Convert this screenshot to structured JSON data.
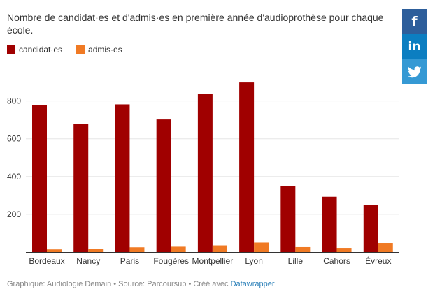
{
  "title": "Nombre de candidat·es et d'admis·es en première année d'audioprothèse pour chaque école.",
  "legend": {
    "candidats": "candidat·es",
    "admis": "admis·es"
  },
  "colors": {
    "candidats": "#a00000",
    "admis": "#f07a24"
  },
  "share": {
    "facebook_icon": "facebook-icon",
    "linkedin_icon": "linkedin-icon",
    "twitter_icon": "twitter-icon"
  },
  "footer": {
    "text": "Graphique: Audiologie Demain • Source: Parcoursup • Créé avec",
    "link": "Datawrapper"
  },
  "chart_data": {
    "type": "bar",
    "categories": [
      "Bordeaux",
      "Nancy",
      "Paris",
      "Fougères",
      "Montpellier",
      "Lyon",
      "Lille",
      "Cahors",
      "Évreux"
    ],
    "series": [
      {
        "name": "candidat·es",
        "values": [
          780,
          680,
          782,
          702,
          838,
          898,
          350,
          293,
          248
        ]
      },
      {
        "name": "admis·es",
        "values": [
          14,
          18,
          25,
          28,
          35,
          50,
          26,
          22,
          48
        ]
      }
    ],
    "yticks": [
      200,
      400,
      600,
      800
    ],
    "ylim": [
      0,
      900
    ],
    "grid": true,
    "legend_position": "top-left"
  }
}
